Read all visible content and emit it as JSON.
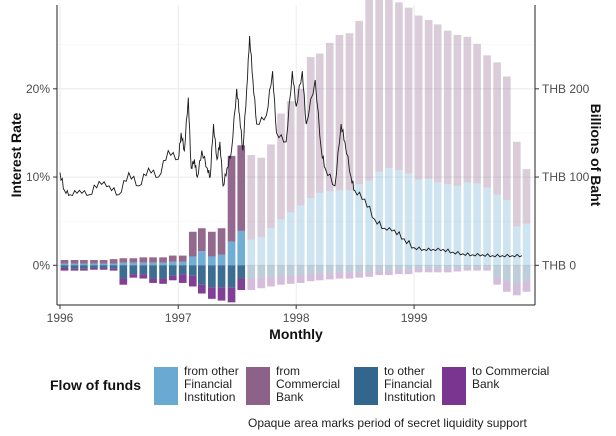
{
  "chart_data": {
    "type": "bar",
    "title": "",
    "xlabel": "Monthly",
    "ylabel_left": "Interest Rate",
    "ylabel_right": "Billions of Baht",
    "x_ticks": [
      "1996",
      "1997",
      "1998",
      "1999"
    ],
    "y_left_ticks": [
      "0%",
      "10%",
      "20%"
    ],
    "y_right_ticks": [
      "THB 0",
      "THB 100",
      "THB 200"
    ],
    "y_left_range": [
      -0.045,
      0.295
    ],
    "y_right_range": [
      -45,
      295
    ],
    "grid": true,
    "legend_title": "Flow of funds",
    "legend_position": "bottom",
    "caption": "Opaque area marks period of secret liquidity support",
    "secret_support_end": "1997-07",
    "months": [
      "1996-01",
      "1996-02",
      "1996-03",
      "1996-04",
      "1996-05",
      "1996-06",
      "1996-07",
      "1996-08",
      "1996-09",
      "1996-10",
      "1996-11",
      "1996-12",
      "1997-01",
      "1997-02",
      "1997-03",
      "1997-04",
      "1997-05",
      "1997-06",
      "1997-07",
      "1997-08",
      "1997-09",
      "1997-10",
      "1997-11",
      "1997-12",
      "1998-01",
      "1998-02",
      "1998-03",
      "1998-04",
      "1998-05",
      "1998-06",
      "1998-07",
      "1998-08",
      "1998-09",
      "1998-10",
      "1998-11",
      "1998-12",
      "1999-01",
      "1999-02",
      "1999-03",
      "1999-04",
      "1999-05",
      "1999-06",
      "1999-07",
      "1999-08",
      "1999-09",
      "1999-10",
      "1999-11",
      "1999-12"
    ],
    "series": [
      {
        "name": "from other Financial Institution",
        "color": "#6aaad2",
        "values": [
          2,
          2,
          2,
          2,
          2,
          2,
          3,
          3,
          3,
          3,
          3,
          4,
          4,
          10,
          16,
          10,
          12,
          27,
          39,
          29,
          32,
          42,
          52,
          60,
          68,
          76,
          82,
          84,
          85,
          85,
          92,
          96,
          106,
          110,
          108,
          104,
          97,
          98,
          94,
          92,
          90,
          94,
          93,
          88,
          80,
          74,
          44,
          47
        ]
      },
      {
        "name": "from Commercial Bank",
        "color": "#8d6288",
        "values": [
          4,
          4,
          4,
          4,
          4,
          5,
          5,
          5,
          6,
          6,
          6,
          7,
          7,
          28,
          26,
          28,
          30,
          97,
          97,
          96,
          90,
          95,
          120,
          126,
          132,
          160,
          158,
          168,
          176,
          178,
          185,
          206,
          203,
          198,
          190,
          188,
          186,
          180,
          179,
          174,
          171,
          165,
          158,
          150,
          150,
          140,
          96,
          62
        ]
      },
      {
        "name": "to other Financial Institution",
        "color": "#33668c",
        "values": [
          -3,
          -4,
          -4,
          -3,
          -3,
          -4,
          -15,
          -10,
          -10,
          -15,
          -15,
          -12,
          -10,
          -12,
          -22,
          -25,
          -25,
          -25,
          -15,
          -15,
          -14,
          -13,
          -12,
          -12,
          -11,
          -10,
          -9,
          -9,
          -8,
          -8,
          -8,
          -7,
          -6,
          -6,
          -5,
          -5,
          -4,
          -4,
          -4,
          -4,
          -4,
          -3,
          -3,
          -3,
          -14,
          -18,
          -20,
          -18
        ]
      },
      {
        "name": "to Commercial Bank",
        "color": "#7a3590",
        "values": [
          -3,
          -2,
          -2,
          -2,
          -2,
          -2,
          -7,
          -4,
          -5,
          -5,
          -6,
          -5,
          -10,
          -12,
          -10,
          -13,
          -15,
          -17,
          -13,
          -13,
          -12,
          -11,
          -10,
          -9,
          -9,
          -8,
          -8,
          -7,
          -7,
          -7,
          -6,
          -6,
          -5,
          -5,
          -5,
          -5,
          -4,
          -4,
          -4,
          -4,
          -3,
          -3,
          -3,
          -3,
          -8,
          -12,
          -14,
          -12
        ]
      }
    ],
    "interest_rate": {
      "x": [
        "1996-01-01",
        "1996-01-15",
        "1996-02-01",
        "1996-03-01",
        "1996-04-01",
        "1996-05-01",
        "1996-06-01",
        "1996-07-01",
        "1996-08-01",
        "1996-09-01",
        "1996-10-01",
        "1996-11-01",
        "1996-12-01",
        "1997-01-01",
        "1997-01-10",
        "1997-01-20",
        "1997-02-01",
        "1997-02-10",
        "1997-02-20",
        "1997-03-01",
        "1997-03-15",
        "1997-04-01",
        "1997-04-10",
        "1997-04-20",
        "1997-05-01",
        "1997-05-10",
        "1997-05-20",
        "1997-06-01",
        "1997-06-15",
        "1997-07-01",
        "1997-07-10",
        "1997-07-20",
        "1997-08-01",
        "1997-08-10",
        "1997-08-20",
        "1997-09-01",
        "1997-10-01",
        "1997-10-20",
        "1997-11-01",
        "1997-12-01",
        "1997-12-20",
        "1998-01-01",
        "1998-01-20",
        "1998-02-01",
        "1998-03-01",
        "1998-03-20",
        "1998-04-01",
        "1998-05-01",
        "1998-05-20",
        "1998-06-01",
        "1998-06-20",
        "1998-07-01",
        "1998-08-01",
        "1998-09-01",
        "1998-10-01",
        "1998-11-01",
        "1998-12-01",
        "1999-01-01",
        "1999-02-01",
        "1999-03-01",
        "1999-04-01",
        "1999-05-01",
        "1999-06-01",
        "1999-07-01",
        "1999-08-01",
        "1999-09-01",
        "1999-10-01",
        "1999-11-01",
        "1999-12-01"
      ],
      "y": [
        0.105,
        0.085,
        0.08,
        0.085,
        0.08,
        0.095,
        0.09,
        0.08,
        0.105,
        0.09,
        0.11,
        0.1,
        0.13,
        0.12,
        0.15,
        0.13,
        0.19,
        0.11,
        0.12,
        0.1,
        0.13,
        0.11,
        0.1,
        0.16,
        0.12,
        0.14,
        0.09,
        0.11,
        0.13,
        0.2,
        0.17,
        0.13,
        0.2,
        0.26,
        0.21,
        0.16,
        0.17,
        0.22,
        0.15,
        0.14,
        0.22,
        0.18,
        0.22,
        0.16,
        0.21,
        0.13,
        0.11,
        0.09,
        0.16,
        0.14,
        0.1,
        0.085,
        0.075,
        0.052,
        0.042,
        0.04,
        0.03,
        0.02,
        0.018,
        0.018,
        0.018,
        0.015,
        0.013,
        0.012,
        0.012,
        0.011,
        0.011,
        0.011,
        0.011
      ]
    }
  }
}
